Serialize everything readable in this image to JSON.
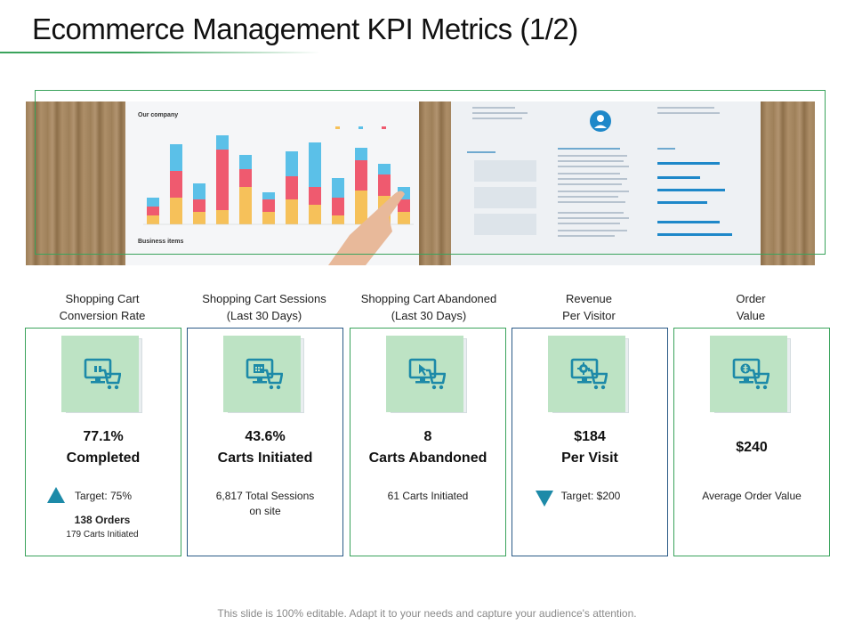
{
  "title": "Ecommerce Management KPI Metrics (1/2)",
  "hero": {
    "chart_heading": "Our company",
    "chart_subheading": "Business items"
  },
  "kpis": [
    {
      "header_line1": "Shopping Cart",
      "header_line2": "Conversion Rate",
      "metric_line1": "77.1%",
      "metric_line2": "Completed",
      "target": "Target: 75%",
      "orders": "138 Orders",
      "orders_sub": "179 Carts Initiated",
      "indicator": "up",
      "icon": "cart-monitor-gift-icon"
    },
    {
      "header_line1": "Shopping Cart Sessions",
      "header_line2": "(Last 30 Days)",
      "metric_line1": "43.6%",
      "metric_line2": "Carts Initiated",
      "note_line1": "6,817 Total Sessions",
      "note_line2": "on site",
      "icon": "cart-monitor-calendar-icon"
    },
    {
      "header_line1": "Shopping Cart Abandoned",
      "header_line2": "(Last 30 Days)",
      "metric_line1": "8",
      "metric_line2": "Carts Abandoned",
      "note_line1": "61 Carts Initiated",
      "icon": "cart-monitor-cursor-icon"
    },
    {
      "header_line1": "Revenue",
      "header_line2": "Per Visitor",
      "metric_line1": "$184",
      "metric_line2": "Per Visit",
      "target": "Target: $200",
      "indicator": "down",
      "icon": "cart-monitor-gear-icon"
    },
    {
      "header_line1": "Order",
      "header_line2": "Value",
      "metric_line1": "$240",
      "note_line1": "Average Order Value",
      "icon": "cart-monitor-dollar-icon"
    }
  ],
  "footer": "This slide is 100% editable. Adapt it to your needs and capture your audience's attention.",
  "colors": {
    "accent_green": "#3aa35c",
    "accent_blue_border": "#2a5a86",
    "tile_green": "#bde3c4",
    "icon_teal": "#1d8aa8"
  }
}
